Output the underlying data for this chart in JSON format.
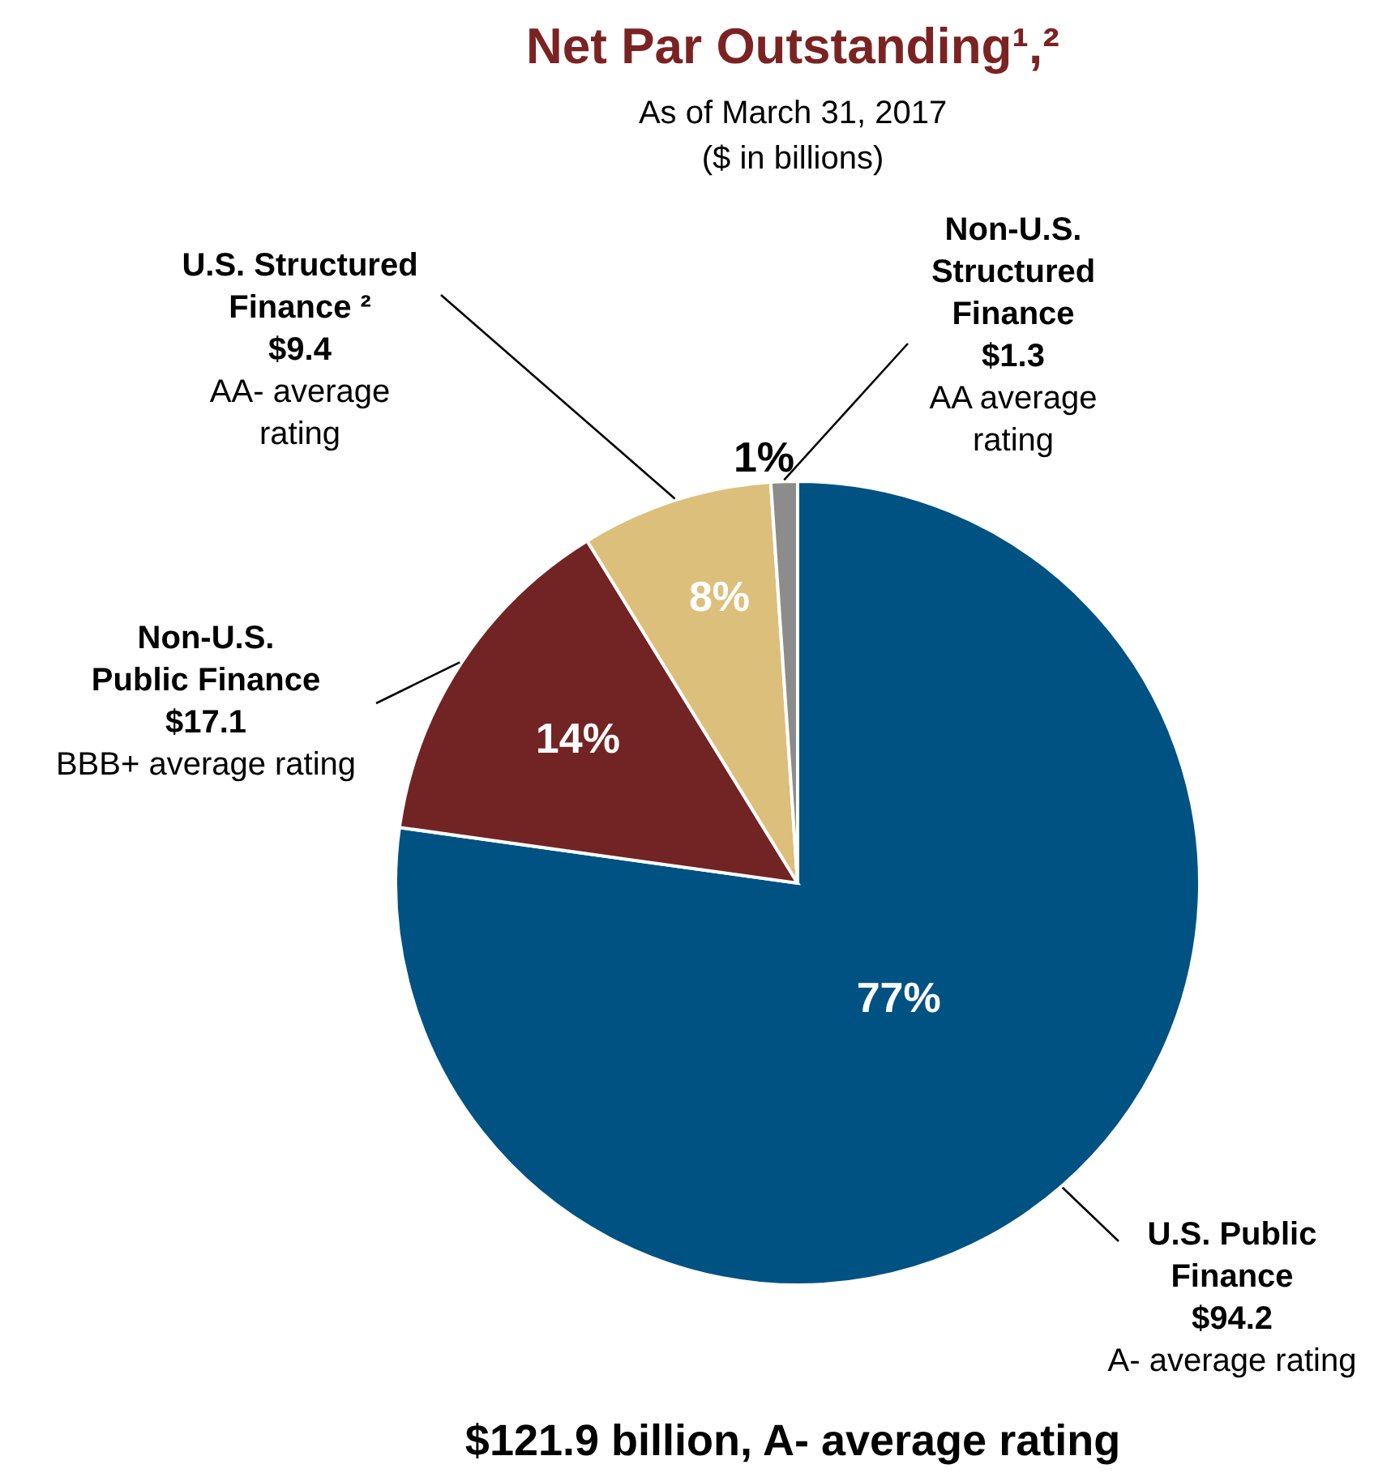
{
  "chart_data": {
    "type": "pie",
    "title": "Net Par Outstanding¹,²",
    "subtitle": "As of March 31, 2017\n($ in billions)",
    "categories": [
      "U.S. Public Finance",
      "Non-U.S. Public Finance",
      "U.S. Structured Finance ²",
      "Non-U.S. Structured Finance"
    ],
    "values": [
      94.2,
      17.1,
      9.4,
      1.3
    ],
    "colors": [
      "#005282",
      "#722424",
      "#dcbf7a",
      "#8c8c8c"
    ],
    "value_labels": [
      "$94.2",
      "$17.1",
      "$9.4",
      "$1.3"
    ],
    "annotations": [
      {
        "text": "77%",
        "x": "U.S. Public Finance"
      },
      {
        "text": "A- average rating",
        "x": "U.S. Public Finance"
      },
      {
        "text": "14%",
        "x": "Non-U.S. Public Finance"
      },
      {
        "text": "BBB+ average rating",
        "x": "Non-U.S. Public Finance"
      },
      {
        "text": "8%",
        "x": "U.S. Structured Finance ²"
      },
      {
        "text": "AA- average rating",
        "x": "U.S. Structured Finance ²"
      },
      {
        "text": "1%",
        "x": "Non-U.S. Structured Finance"
      },
      {
        "text": "AA average rating",
        "x": "Non-U.S. Structured Finance"
      },
      "$121.9 billion, A- average rating"
    ]
  }
}
